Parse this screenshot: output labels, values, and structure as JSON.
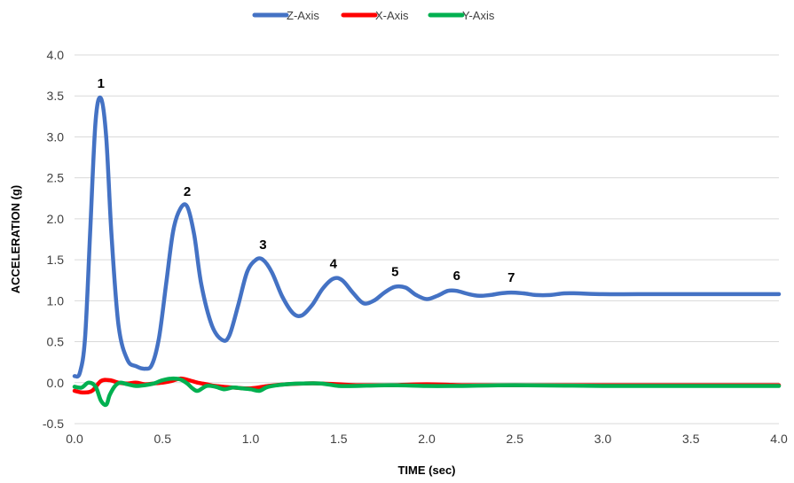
{
  "chart_data": {
    "type": "line",
    "xlabel": "TIME (sec)",
    "ylabel": "ACCELERATION (g)",
    "xlim": [
      0,
      4.0
    ],
    "ylim": [
      -0.5,
      4.0
    ],
    "x_ticks": [
      "0.0",
      "0.5",
      "1.0",
      "1.5",
      "2.0",
      "2.5",
      "3.0",
      "3.5",
      "4.0"
    ],
    "y_ticks": [
      "-0.5",
      "0.0",
      "0.5",
      "1.0",
      "1.5",
      "2.0",
      "2.5",
      "3.0",
      "3.5",
      "4.0"
    ],
    "grid": "horizontal",
    "legend_position": "top",
    "series": [
      {
        "name": "Z-Axis",
        "color": "#4472C4",
        "x": [
          0.0,
          0.03,
          0.06,
          0.09,
          0.12,
          0.15,
          0.18,
          0.21,
          0.25,
          0.3,
          0.35,
          0.4,
          0.44,
          0.48,
          0.52,
          0.56,
          0.6,
          0.64,
          0.68,
          0.72,
          0.78,
          0.84,
          0.88,
          0.93,
          0.98,
          1.03,
          1.07,
          1.12,
          1.18,
          1.24,
          1.29,
          1.35,
          1.41,
          1.47,
          1.52,
          1.58,
          1.64,
          1.7,
          1.76,
          1.82,
          1.88,
          1.94,
          2.0,
          2.06,
          2.12,
          2.17,
          2.24,
          2.3,
          2.36,
          2.42,
          2.48,
          2.55,
          2.62,
          2.7,
          2.78,
          2.86,
          3.0,
          3.2,
          3.5,
          3.8,
          4.0
        ],
        "values": [
          0.08,
          0.12,
          0.55,
          1.9,
          3.2,
          3.47,
          3.0,
          1.8,
          0.7,
          0.28,
          0.2,
          0.17,
          0.22,
          0.55,
          1.2,
          1.85,
          2.12,
          2.15,
          1.8,
          1.2,
          0.7,
          0.52,
          0.58,
          0.95,
          1.35,
          1.5,
          1.5,
          1.35,
          1.05,
          0.85,
          0.82,
          0.95,
          1.15,
          1.27,
          1.25,
          1.1,
          0.97,
          1.0,
          1.1,
          1.17,
          1.16,
          1.07,
          1.02,
          1.06,
          1.12,
          1.12,
          1.08,
          1.06,
          1.07,
          1.09,
          1.1,
          1.09,
          1.07,
          1.07,
          1.09,
          1.09,
          1.08,
          1.08,
          1.08,
          1.08,
          1.08
        ]
      },
      {
        "name": "X-Axis",
        "color": "#FF0000",
        "x": [
          0.0,
          0.05,
          0.1,
          0.15,
          0.2,
          0.25,
          0.3,
          0.35,
          0.4,
          0.45,
          0.5,
          0.55,
          0.6,
          0.65,
          0.7,
          0.75,
          0.8,
          0.9,
          1.0,
          1.1,
          1.2,
          1.3,
          1.4,
          1.5,
          1.6,
          1.8,
          2.0,
          2.2,
          2.5,
          3.0,
          3.5,
          4.0
        ],
        "values": [
          -0.1,
          -0.12,
          -0.1,
          0.02,
          0.03,
          0.0,
          -0.01,
          0.0,
          -0.02,
          -0.01,
          0.0,
          0.02,
          0.05,
          0.03,
          0.0,
          -0.02,
          -0.04,
          -0.06,
          -0.07,
          -0.04,
          -0.02,
          -0.01,
          -0.01,
          -0.02,
          -0.03,
          -0.03,
          -0.02,
          -0.03,
          -0.03,
          -0.03,
          -0.03,
          -0.03
        ]
      },
      {
        "name": "Y-Axis",
        "color": "#00B050",
        "x": [
          0.0,
          0.04,
          0.08,
          0.12,
          0.15,
          0.18,
          0.2,
          0.23,
          0.26,
          0.3,
          0.35,
          0.4,
          0.45,
          0.5,
          0.55,
          0.6,
          0.64,
          0.67,
          0.7,
          0.75,
          0.8,
          0.85,
          0.9,
          0.95,
          1.0,
          1.05,
          1.1,
          1.2,
          1.3,
          1.4,
          1.5,
          1.6,
          1.8,
          2.0,
          2.2,
          2.5,
          3.0,
          3.5,
          4.0
        ],
        "values": [
          -0.05,
          -0.06,
          0.0,
          -0.05,
          -0.22,
          -0.27,
          -0.15,
          -0.04,
          0.0,
          -0.02,
          -0.04,
          -0.03,
          -0.01,
          0.03,
          0.05,
          0.04,
          -0.01,
          -0.07,
          -0.1,
          -0.04,
          -0.05,
          -0.08,
          -0.06,
          -0.07,
          -0.08,
          -0.1,
          -0.05,
          -0.02,
          -0.01,
          -0.01,
          -0.04,
          -0.04,
          -0.03,
          -0.04,
          -0.04,
          -0.03,
          -0.04,
          -0.04,
          -0.04
        ]
      }
    ],
    "annotations": [
      {
        "text": "1",
        "x": 0.15,
        "y": 3.47
      },
      {
        "text": "2",
        "x": 0.64,
        "y": 2.15
      },
      {
        "text": "3",
        "x": 1.07,
        "y": 1.5
      },
      {
        "text": "4",
        "x": 1.47,
        "y": 1.27
      },
      {
        "text": "5",
        "x": 1.82,
        "y": 1.17
      },
      {
        "text": "6",
        "x": 2.17,
        "y": 1.12
      },
      {
        "text": "7",
        "x": 2.48,
        "y": 1.1
      }
    ]
  }
}
